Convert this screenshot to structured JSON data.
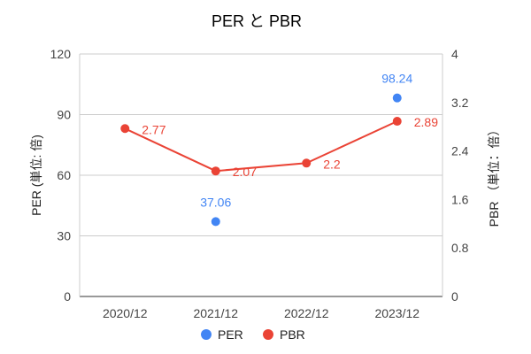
{
  "chart_data": {
    "type": "combo-line-scatter",
    "title": "PER と PBR",
    "categories": [
      "2020/12",
      "2021/12",
      "2022/12",
      "2023/12"
    ],
    "y_left": {
      "label": "PER (単位: 倍)",
      "min": 0,
      "max": 120,
      "ticks": [
        "0",
        "30",
        "60",
        "90",
        "120"
      ]
    },
    "y_right": {
      "label": "PBR （単位：倍）",
      "min": 0,
      "max": 4,
      "ticks": [
        "0",
        "0.8",
        "1.6",
        "2.4",
        "3.2",
        "4"
      ]
    },
    "grid": true,
    "legend_position": "bottom",
    "series": [
      {
        "name": "PER",
        "kind": "scatter",
        "axis": "left",
        "color": "#4285F4",
        "values": [
          null,
          37.06,
          null,
          98.24
        ],
        "labels": [
          "",
          "37.06",
          "",
          "98.24"
        ]
      },
      {
        "name": "PBR",
        "kind": "line",
        "axis": "right",
        "color": "#EA4335",
        "values": [
          2.77,
          2.07,
          2.2,
          2.89
        ],
        "labels": [
          "2.77",
          "2.07",
          "2.2",
          "2.89"
        ]
      }
    ]
  }
}
